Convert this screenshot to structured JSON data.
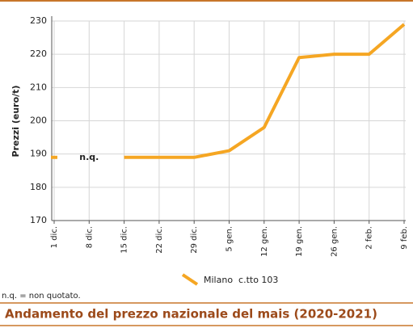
{
  "chart_data": {
    "type": "line",
    "y_label": "Prezzi (euro/t)",
    "categories": [
      "1 dic.",
      "8 dic.",
      "15 dic.",
      "22 dic.",
      "29 dic.",
      "5 gen.",
      "12 gen.",
      "19 gen.",
      "26 gen.",
      "2 feb.",
      "9 feb."
    ],
    "series": [
      {
        "name": "Milano  c.tto 103",
        "color": "#f5a623",
        "values": [
          189,
          null,
          189,
          189,
          189,
          191,
          198,
          219,
          220,
          220,
          229
        ]
      }
    ],
    "annotation": "n.q.",
    "ylim": [
      170,
      230
    ],
    "yticks": [
      170,
      180,
      190,
      200,
      210,
      220,
      230
    ],
    "grid": true,
    "footnote": "n.q. = non quotato.",
    "title": "Andamento del prezzo nazionale del mais (2020-2021)"
  }
}
